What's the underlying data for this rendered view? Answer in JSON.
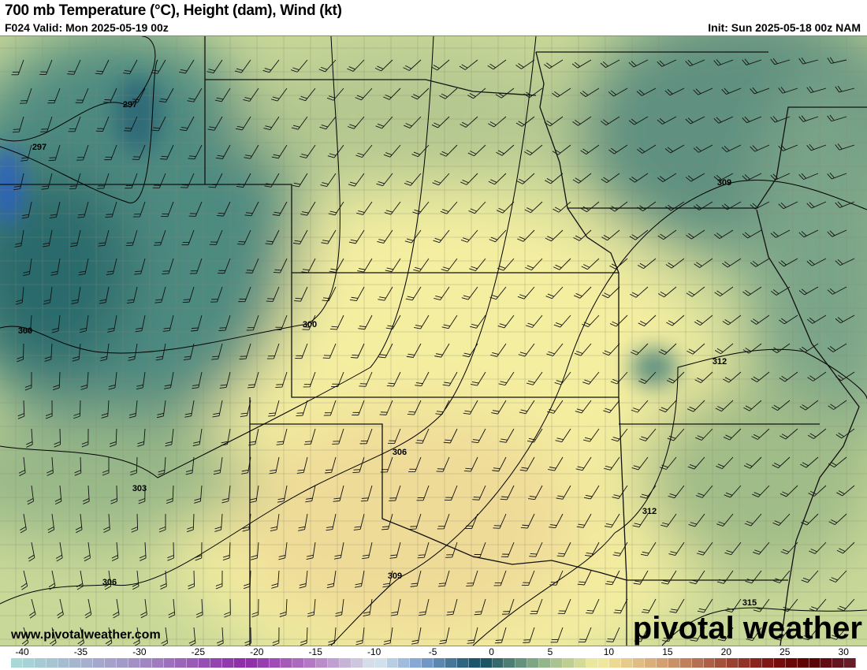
{
  "header": {
    "title": "700 mb Temperature (°C), Height (dam), Wind (kt)",
    "valid": "F024 Valid: Mon 2025-05-19 00z",
    "init": "Init: Sun 2025-05-18 00z NAM"
  },
  "map": {
    "contour_labels": [
      "297",
      "297",
      "300",
      "300",
      "303",
      "306",
      "306",
      "309",
      "309",
      "312",
      "312",
      "315"
    ],
    "watermark_url": "www.pivotalweather.com",
    "logo_text": "pivotal weather"
  },
  "colorbar": {
    "unit": "°C",
    "ticks": [
      "-40",
      "-35",
      "-30",
      "-25",
      "-20",
      "-15",
      "-10",
      "-5",
      "0",
      "5",
      "10",
      "15",
      "20",
      "25",
      "30"
    ],
    "range": [
      -40,
      32
    ],
    "stops": {
      "-40": "#a8dcd8",
      "-30": "#a496c8",
      "-20": "#8e2aa8",
      "-15": "#b070c0",
      "-10": "#d0d0e0",
      "-9": "#dceaf0",
      "-5": "#7ca0d0",
      "0": "#104c60",
      "5": "#8ab088",
      "10": "#f4eea0",
      "15": "#d8a878",
      "20": "#a85840",
      "25": "#7a1010",
      "28": "#5a0000",
      "32": "#6a2030"
    }
  }
}
